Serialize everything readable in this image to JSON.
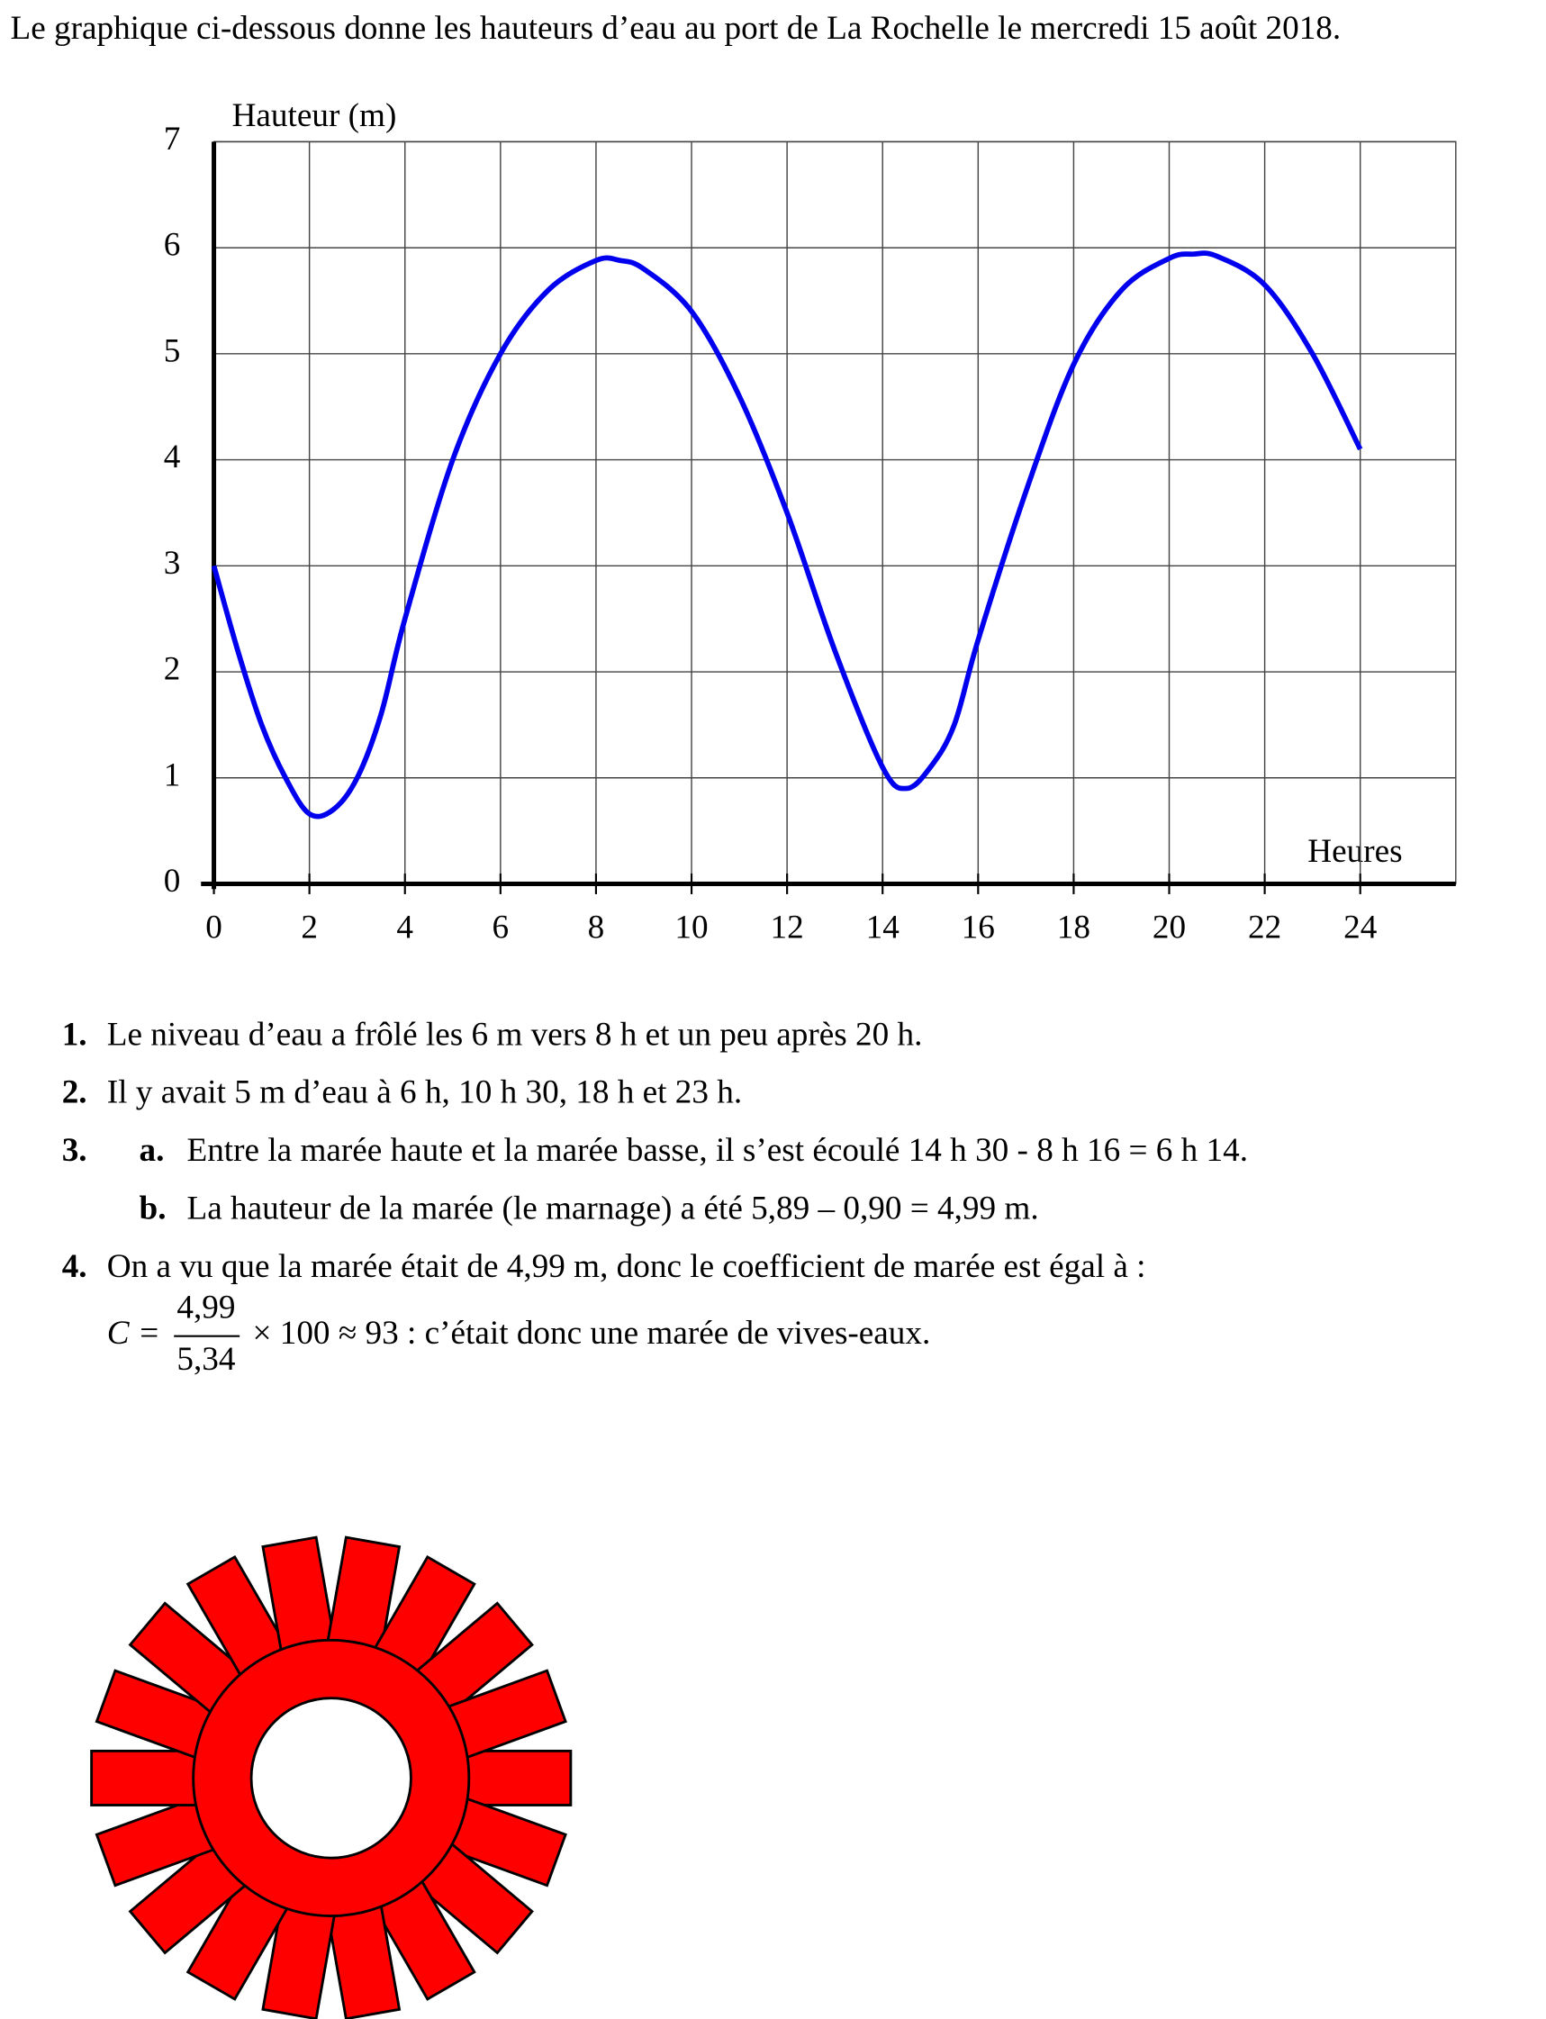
{
  "intro": "Le graphique ci-dessous donne les hauteurs d’eau au port de La Rochelle le mercredi 15 août 2018.",
  "chart_data": {
    "type": "line",
    "ylabel": "Hauteur (m)",
    "xlabel": "Heures",
    "xlim": [
      0,
      26
    ],
    "ylim": [
      0,
      7
    ],
    "xticks": [
      0,
      2,
      4,
      6,
      8,
      10,
      12,
      14,
      16,
      18,
      20,
      22,
      24
    ],
    "yticks": [
      0,
      1,
      2,
      3,
      4,
      5,
      6,
      7
    ],
    "grid": true,
    "series": [
      {
        "color": "#0000ee",
        "x": [
          0,
          0.5,
          1,
          1.5,
          2,
          2.5,
          3,
          3.5,
          4,
          5,
          6,
          7,
          8,
          8.5,
          9,
          10,
          11,
          12,
          13,
          14,
          14.5,
          15,
          15.5,
          16,
          17,
          18,
          19,
          20,
          20.5,
          21,
          22,
          23,
          24
        ],
        "values": [
          3,
          2.2,
          1.5,
          1.0,
          0.66,
          0.7,
          1.0,
          1.6,
          2.5,
          4.0,
          5.0,
          5.6,
          5.88,
          5.88,
          5.8,
          5.4,
          4.6,
          3.5,
          2.2,
          1.1,
          0.9,
          1.1,
          1.5,
          2.3,
          3.7,
          4.9,
          5.6,
          5.9,
          5.94,
          5.92,
          5.65,
          5.0,
          4.1
        ]
      }
    ]
  },
  "answers": [
    {
      "number": "1.",
      "text": "Le niveau d’eau a frôlé les 6 m vers 8 h et un peu après 20 h."
    },
    {
      "number": "2.",
      "text": "Il y avait 5 m d’eau à 6 h, 10 h 30, 18 h et 23 h."
    },
    {
      "number": "3.",
      "parts": [
        {
          "letter": "a.",
          "text": "Entre la marée haute et la marée basse, il s’est écoulé 14 h 30 - 8 h 16 = 6 h 14."
        },
        {
          "letter": "b.",
          "text": "La hauteur de la marée (le marnage) a été 5,89 – 0,90 = 4,99 m."
        }
      ]
    },
    {
      "number": "4.",
      "text": "On a vu que la marée était de 4,99 m, donc le coefficient de marée est égal à :",
      "formula": {
        "lhs": "C =",
        "numerator": "4,99",
        "denominator": "5,34",
        "rest": "× 100 ≈ 93 : c’était donc une marée de vives-eaux."
      }
    }
  ]
}
